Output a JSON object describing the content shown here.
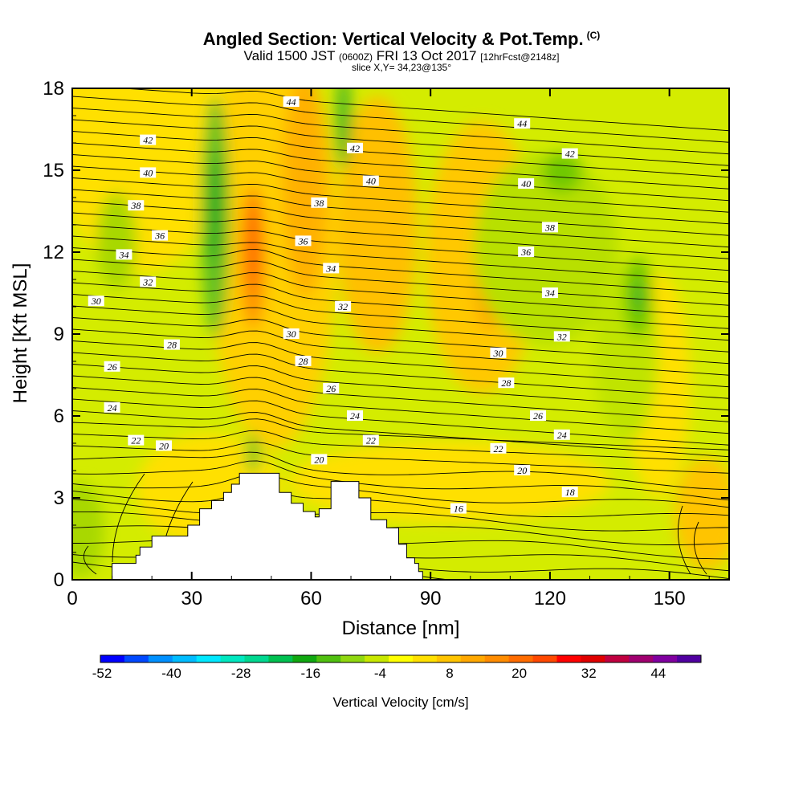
{
  "header": {
    "title": "Angled Section: Vertical Velocity & Pot.Temp.",
    "title_mark": "(C)",
    "valid_prefix": "Valid 1500 JST",
    "valid_utc": "(0600Z)",
    "valid_date": "FRI 13 Oct 2017",
    "forecast": "[12hrFcst@2148z]",
    "slice": "slice X,Y= 34,23@135°"
  },
  "chart_data": {
    "type": "heatmap",
    "xlabel": "Distance [nm]",
    "ylabel": "Height [Kft MSL]",
    "xlim": [
      0,
      165
    ],
    "ylim": [
      0,
      18
    ],
    "xticks": [
      0,
      30,
      60,
      90,
      120,
      150
    ],
    "yticks": [
      0,
      3,
      6,
      9,
      12,
      15,
      18
    ],
    "terrain": [
      [
        0,
        0
      ],
      [
        10,
        0
      ],
      [
        10,
        0.6
      ],
      [
        16,
        0.6
      ],
      [
        16,
        0.9
      ],
      [
        17,
        0.9
      ],
      [
        17,
        1.2
      ],
      [
        20,
        1.2
      ],
      [
        20,
        1.6
      ],
      [
        22,
        1.6
      ],
      [
        22,
        1.6
      ],
      [
        29,
        1.6
      ],
      [
        29,
        2.0
      ],
      [
        32,
        2.0
      ],
      [
        32,
        2.6
      ],
      [
        35,
        2.6
      ],
      [
        35,
        2.9
      ],
      [
        38,
        2.9
      ],
      [
        38,
        3.2
      ],
      [
        40,
        3.2
      ],
      [
        40,
        3.5
      ],
      [
        42,
        3.5
      ],
      [
        42,
        3.9
      ],
      [
        52,
        3.9
      ],
      [
        52,
        3.2
      ],
      [
        55,
        3.2
      ],
      [
        55,
        2.8
      ],
      [
        58,
        2.8
      ],
      [
        58,
        2.5
      ],
      [
        61,
        2.5
      ],
      [
        61,
        2.3
      ],
      [
        62,
        2.3
      ],
      [
        62,
        2.6
      ],
      [
        65,
        2.6
      ],
      [
        65,
        3.6
      ],
      [
        72,
        3.6
      ],
      [
        72,
        3.0
      ],
      [
        75,
        3.0
      ],
      [
        75,
        2.2
      ],
      [
        79,
        2.2
      ],
      [
        79,
        1.9
      ],
      [
        82,
        1.9
      ],
      [
        82,
        1.3
      ],
      [
        84,
        1.3
      ],
      [
        84,
        0.8
      ],
      [
        86,
        0.8
      ],
      [
        86,
        0.6
      ],
      [
        87,
        0.6
      ],
      [
        87,
        0.3
      ],
      [
        88,
        0.3
      ],
      [
        88,
        0
      ],
      [
        165,
        0
      ]
    ],
    "theta_contours": [
      {
        "value": "44",
        "x": 55,
        "y": 17.5
      },
      {
        "value": "44",
        "x": 113,
        "y": 16.7
      },
      {
        "value": "42",
        "x": 19,
        "y": 16.1
      },
      {
        "value": "42",
        "x": 71,
        "y": 15.8
      },
      {
        "value": "42",
        "x": 125,
        "y": 15.6
      },
      {
        "value": "40",
        "x": 19,
        "y": 14.9
      },
      {
        "value": "40",
        "x": 75,
        "y": 14.6
      },
      {
        "value": "40",
        "x": 114,
        "y": 14.5
      },
      {
        "value": "38",
        "x": 16,
        "y": 13.7
      },
      {
        "value": "38",
        "x": 62,
        "y": 13.8
      },
      {
        "value": "38",
        "x": 120,
        "y": 12.9
      },
      {
        "value": "36",
        "x": 22,
        "y": 12.6
      },
      {
        "value": "36",
        "x": 58,
        "y": 12.4
      },
      {
        "value": "36",
        "x": 114,
        "y": 12.0
      },
      {
        "value": "34",
        "x": 13,
        "y": 11.9
      },
      {
        "value": "34",
        "x": 65,
        "y": 11.4
      },
      {
        "value": "34",
        "x": 120,
        "y": 10.5
      },
      {
        "value": "32",
        "x": 19,
        "y": 10.9
      },
      {
        "value": "32",
        "x": 68,
        "y": 10.0
      },
      {
        "value": "32",
        "x": 123,
        "y": 8.9
      },
      {
        "value": "30",
        "x": 6,
        "y": 10.2
      },
      {
        "value": "30",
        "x": 55,
        "y": 9.0
      },
      {
        "value": "30",
        "x": 107,
        "y": 8.3
      },
      {
        "value": "28",
        "x": 25,
        "y": 8.6
      },
      {
        "value": "28",
        "x": 58,
        "y": 8.0
      },
      {
        "value": "28",
        "x": 109,
        "y": 7.2
      },
      {
        "value": "26",
        "x": 10,
        "y": 7.8
      },
      {
        "value": "26",
        "x": 65,
        "y": 7.0
      },
      {
        "value": "26",
        "x": 117,
        "y": 6.0
      },
      {
        "value": "24",
        "x": 10,
        "y": 6.3
      },
      {
        "value": "24",
        "x": 71,
        "y": 6.0
      },
      {
        "value": "24",
        "x": 123,
        "y": 5.3
      },
      {
        "value": "22",
        "x": 16,
        "y": 5.1
      },
      {
        "value": "22",
        "x": 75,
        "y": 5.1
      },
      {
        "value": "22",
        "x": 107,
        "y": 4.8
      },
      {
        "value": "20",
        "x": 23,
        "y": 4.9
      },
      {
        "value": "20",
        "x": 62,
        "y": 4.4
      },
      {
        "value": "20",
        "x": 113,
        "y": 4.0
      },
      {
        "value": "18",
        "x": 125,
        "y": 3.2
      },
      {
        "value": "16",
        "x": 97,
        "y": 2.6
      }
    ],
    "colorbar": {
      "label": "Vertical Velocity [cm/s]",
      "ticks": [
        "-52",
        "-40",
        "-28",
        "-16",
        "-4",
        "8",
        "20",
        "32",
        "44"
      ],
      "colors": [
        "#0000ff",
        "#0048ff",
        "#0090ff",
        "#00bcff",
        "#00e8ff",
        "#00e8c0",
        "#00d890",
        "#00c050",
        "#10a810",
        "#50c010",
        "#90d810",
        "#c8e800",
        "#ffff00",
        "#ffe000",
        "#ffc400",
        "#ffa800",
        "#ff8c00",
        "#ff6c00",
        "#ff4800",
        "#ff0000",
        "#e00000",
        "#c00040",
        "#a00070",
        "#8000a0",
        "#5000a0"
      ]
    }
  }
}
